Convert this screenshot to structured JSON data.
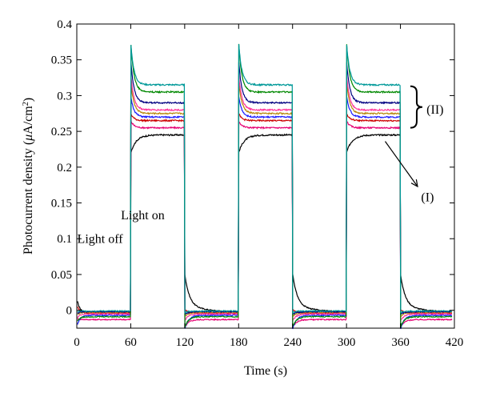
{
  "chart_data": {
    "type": "line",
    "title": "",
    "xlabel": "Time (s)",
    "ylabel_parts": {
      "pre": "Photocurrent density (",
      "mu": "μ",
      "unit": "A/cm",
      "sup": "2",
      "post": ")"
    },
    "xlim": [
      0,
      420
    ],
    "ylim": [
      -0.025,
      0.4
    ],
    "x_ticks": [
      0,
      60,
      120,
      180,
      240,
      300,
      360,
      420
    ],
    "y_ticks": [
      0,
      0.05,
      0.1,
      0.15,
      0.2,
      0.25,
      0.3,
      0.35,
      0.4
    ],
    "y_tick_labels": [
      "0",
      "0.05",
      "0.1",
      "0.15",
      "0.2",
      "0.25",
      "0.3",
      "0.35",
      "0.4"
    ],
    "light_cycles": [
      [
        60,
        120
      ],
      [
        180,
        240
      ],
      [
        300,
        360
      ]
    ],
    "grid": false,
    "legend": "none",
    "annotations": {
      "light_on": "Light on",
      "light_off": "Light off",
      "group_I": "(I)",
      "group_II": "(II)"
    },
    "series": [
      {
        "color": "#000000",
        "peak": 0.22,
        "steady": 0.245,
        "dark": -0.003,
        "tail": 0.012
      },
      {
        "color": "#e60073",
        "peak": 0.265,
        "steady": 0.255,
        "dark": -0.013,
        "tail": -0.012
      },
      {
        "color": "#cc0000",
        "peak": 0.275,
        "steady": 0.265,
        "dark": -0.004,
        "tail": 0.005
      },
      {
        "color": "#1a1aff",
        "peak": 0.3,
        "steady": 0.27,
        "dark": -0.007,
        "tail": -0.02
      },
      {
        "color": "#b8860b",
        "peak": 0.32,
        "steady": 0.275,
        "dark": -0.003,
        "tail": -0.006
      },
      {
        "color": "#ff3399",
        "peak": 0.33,
        "steady": 0.28,
        "dark": -0.005,
        "tail": -0.01
      },
      {
        "color": "#000080",
        "peak": 0.35,
        "steady": 0.29,
        "dark": -0.002,
        "tail": -0.004
      },
      {
        "color": "#008800",
        "peak": 0.375,
        "steady": 0.305,
        "dark": -0.009,
        "tail": -0.015
      },
      {
        "color": "#009999",
        "peak": 0.375,
        "steady": 0.315,
        "dark": -0.001,
        "tail": -0.002
      }
    ]
  }
}
